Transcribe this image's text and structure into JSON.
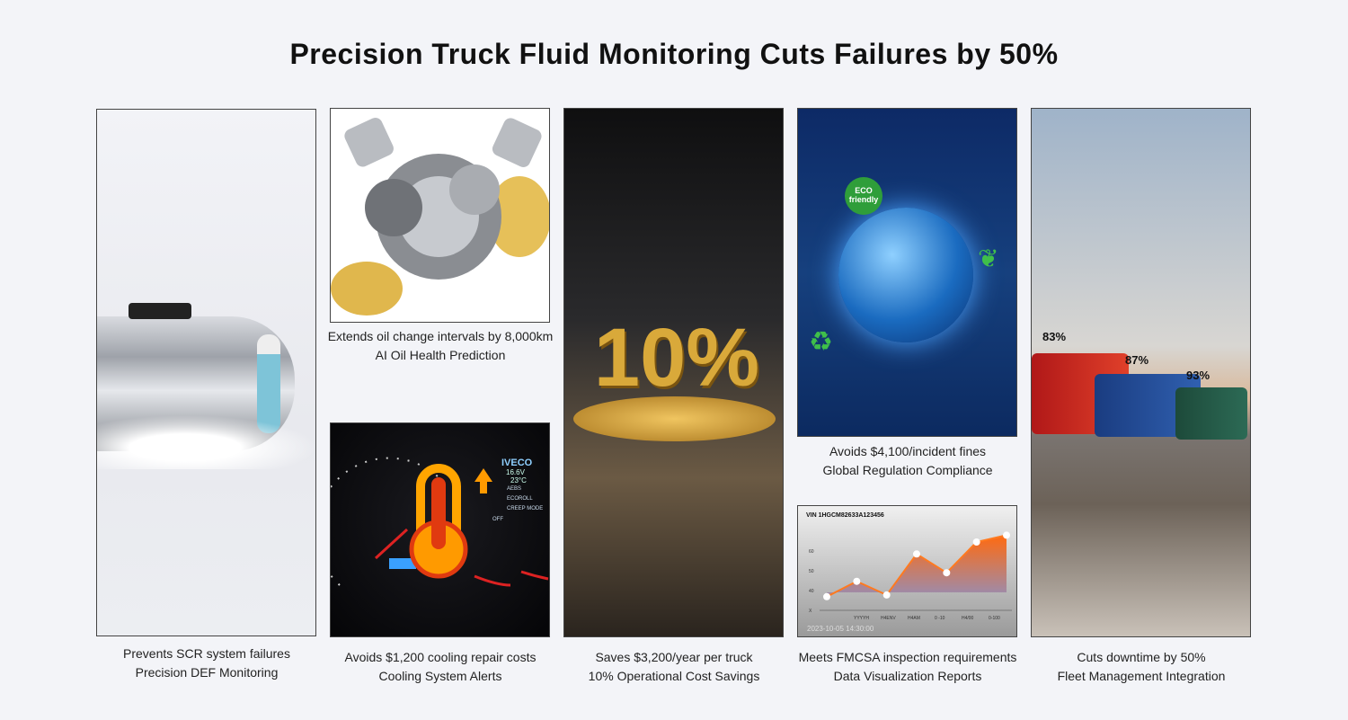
{
  "title": "Precision Truck Fluid Monitoring Cuts Failures by 50%",
  "panels": [
    {
      "line1": "Prevents SCR system failures",
      "line2": "Precision DEF Monitoring"
    },
    {
      "line1": "Extends oil change intervals by 8,000km",
      "line2": "AI Oil Health Prediction"
    },
    {
      "line1": "Avoids $1,200 cooling repair costs",
      "line2": "Cooling System Alerts"
    },
    {
      "line1": "Saves $3,200/year per truck",
      "line2": "10% Operational Cost Savings"
    },
    {
      "line1": "Avoids $4,100/incident fines",
      "line2": "Global Regulation Compliance"
    },
    {
      "line1": "Meets FMCSA inspection requirements",
      "line2": "Data Visualization Reports"
    },
    {
      "line1": "Cuts downtime by 50%",
      "line2": "Fleet Management Integration"
    }
  ],
  "dashboard": {
    "brand": "IVECO",
    "voltage": "16.6V",
    "temp": "23°C",
    "modes": [
      "AEBS",
      "ECOROLL",
      "CREEP MODE"
    ],
    "off": "OFF"
  },
  "coins": {
    "label": "10%"
  },
  "eco": {
    "badge": "ECO friendly"
  },
  "report": {
    "vin": "VIN 1HGCM82633A123456",
    "timestamp": "2023-10-05 14:30:00",
    "yticks": [
      "X",
      "40",
      "50",
      "60"
    ],
    "xticks": [
      "YYYYH",
      "H4ENV",
      "H4AM",
      "0 -10",
      "H4/00",
      "0-100"
    ],
    "points": [
      38,
      47,
      39,
      63,
      52,
      70,
      74
    ]
  },
  "fleet": {
    "percents": [
      "83%",
      "87%",
      "93%"
    ]
  }
}
